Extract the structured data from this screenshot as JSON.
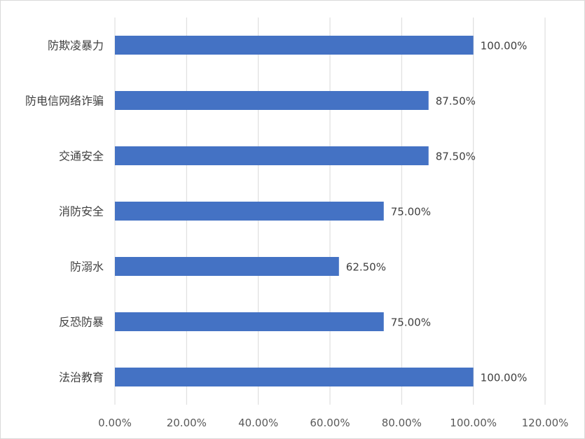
{
  "chart_data": {
    "type": "bar",
    "orientation": "horizontal",
    "categories": [
      "防欺凌暴力",
      "防电信网络诈骗",
      "交通安全",
      "消防安全",
      "防溺水",
      "反恐防暴",
      "法治教育"
    ],
    "values": [
      100.0,
      87.5,
      87.5,
      75.0,
      62.5,
      75.0,
      100.0
    ],
    "value_labels": [
      "100.00%",
      "87.50%",
      "87.50%",
      "75.00%",
      "62.50%",
      "75.00%",
      "100.00%"
    ],
    "xticks": [
      0,
      20,
      40,
      60,
      80,
      100,
      120
    ],
    "xtick_labels": [
      "0.00%",
      "20.00%",
      "40.00%",
      "60.00%",
      "80.00%",
      "100.00%",
      "120.00%"
    ],
    "xlim": [
      0,
      120
    ],
    "grid": "vertical",
    "bar_color": "#4472C4",
    "gridline_color": "#D9D9D9"
  }
}
